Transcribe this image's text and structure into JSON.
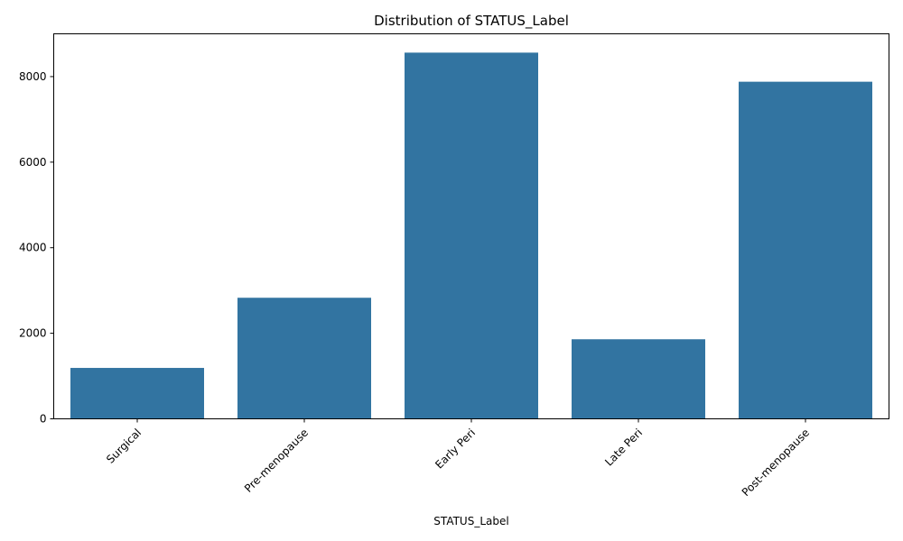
{
  "chart_data": {
    "type": "bar",
    "title": "Distribution of STATUS_Label",
    "xlabel": "STATUS_Label",
    "ylabel": "",
    "categories": [
      "Surgical",
      "Pre-menopause",
      "Early Peri",
      "Late Peri",
      "Post-menopause"
    ],
    "values": [
      1190,
      2830,
      8560,
      1860,
      7880
    ],
    "ylim": [
      0,
      9000
    ],
    "yticks": [
      0,
      2000,
      4000,
      6000,
      8000
    ],
    "bar_color": "#3274a1",
    "grid": false,
    "legend": "none"
  }
}
